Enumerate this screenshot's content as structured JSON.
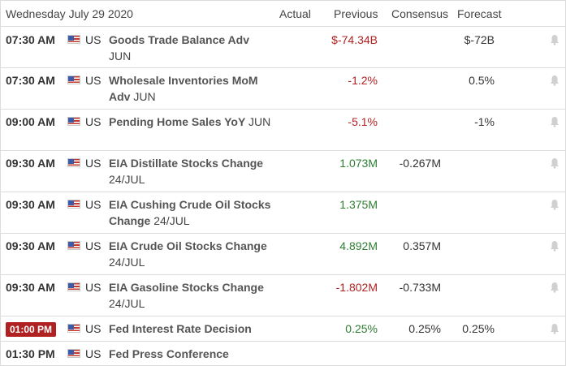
{
  "header": {
    "date": "Wednesday July 29 2020",
    "actual": "Actual",
    "previous": "Previous",
    "consensus": "Consensus",
    "forecast": "Forecast"
  },
  "rows": [
    {
      "time": "07:30 AM",
      "live": false,
      "country": "US",
      "event": "Goods Trade Balance Adv",
      "period": "JUN",
      "actual": "",
      "previous": "$-74.34B",
      "previous_color": "red",
      "consensus": "",
      "forecast": "$-72B",
      "bell": true
    },
    {
      "time": "07:30 AM",
      "live": false,
      "country": "US",
      "event": "Wholesale Inventories MoM Adv",
      "period": "JUN",
      "actual": "",
      "previous": "-1.2%",
      "previous_color": "red",
      "consensus": "",
      "forecast": "0.5%",
      "bell": true
    },
    {
      "time": "09:00 AM",
      "live": false,
      "country": "US",
      "event": "Pending Home Sales YoY",
      "period": "JUN",
      "actual": "",
      "previous": "-5.1%",
      "previous_color": "red",
      "consensus": "",
      "forecast": "-1%",
      "bell": true
    },
    {
      "time": "09:30 AM",
      "live": false,
      "country": "US",
      "event": "EIA Distillate Stocks Change",
      "period": "24/JUL",
      "actual": "",
      "previous": "1.073M",
      "previous_color": "green",
      "consensus": "-0.267M",
      "forecast": "",
      "bell": true
    },
    {
      "time": "09:30 AM",
      "live": false,
      "country": "US",
      "event": "EIA Cushing Crude Oil Stocks Change",
      "period": "24/JUL",
      "actual": "",
      "previous": "1.375M",
      "previous_color": "green",
      "consensus": "",
      "forecast": "",
      "bell": true
    },
    {
      "time": "09:30 AM",
      "live": false,
      "country": "US",
      "event": "EIA Crude Oil Stocks Change",
      "period": "24/JUL",
      "actual": "",
      "previous": "4.892M",
      "previous_color": "green",
      "consensus": "0.357M",
      "forecast": "",
      "bell": true
    },
    {
      "time": "09:30 AM",
      "live": false,
      "country": "US",
      "event": "EIA Gasoline Stocks Change",
      "period": "24/JUL",
      "actual": "",
      "previous": "-1.802M",
      "previous_color": "red",
      "consensus": "-0.733M",
      "forecast": "",
      "bell": true
    },
    {
      "time": "01:00 PM",
      "live": true,
      "country": "US",
      "event": "Fed Interest Rate Decision",
      "period": "",
      "actual": "",
      "previous": "0.25%",
      "previous_color": "green",
      "consensus": "0.25%",
      "forecast": "0.25%",
      "bell": true
    },
    {
      "time": "01:30 PM",
      "live": false,
      "country": "US",
      "event": "Fed Press Conference",
      "period": "",
      "actual": "",
      "previous": "",
      "previous_color": "neutral",
      "consensus": "",
      "forecast": "",
      "bell": false
    }
  ],
  "colors": {
    "red": "#b02121",
    "green": "#2e7d32",
    "border": "#dcdcdc",
    "live_bg": "#b02121"
  },
  "icons": {
    "flag": "us-flag-icon",
    "bell": "bell-icon"
  }
}
